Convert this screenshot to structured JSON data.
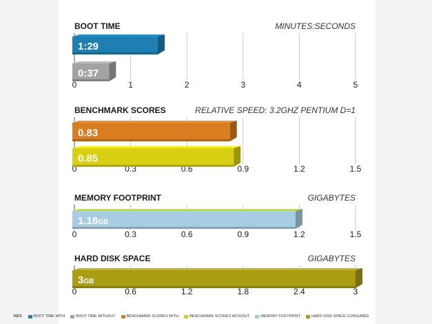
{
  "chart_data": [
    {
      "type": "bar",
      "orientation": "horizontal",
      "title": "BOOT TIME",
      "unit_label": "MINUTES:SECONDS",
      "xlim": [
        0,
        5
      ],
      "ticks": [
        "0",
        "1",
        "2",
        "3",
        "4",
        "5"
      ],
      "tick_values": [
        0,
        1,
        2,
        3,
        4,
        5
      ],
      "grid": true,
      "bars": [
        {
          "series": "BOOT TIME WITH",
          "value": 1.483,
          "label": "1:29",
          "suffix": "",
          "color": "#1f7fb0"
        },
        {
          "series": "BOOT TIME WITHOUT",
          "value": 0.617,
          "label": "0:37",
          "suffix": "",
          "color": "#a3a3a3"
        }
      ]
    },
    {
      "type": "bar",
      "orientation": "horizontal",
      "title": "BENCHMARK SCORES",
      "unit_label": "RELATIVE SPEED: 3.2GHZ PENTIUM D=1",
      "xlim": [
        0,
        1.5
      ],
      "ticks": [
        "0",
        "0.3",
        "0.6",
        "0.9",
        "1.2",
        "1.5"
      ],
      "tick_values": [
        0,
        0.3,
        0.6,
        0.9,
        1.2,
        1.5
      ],
      "grid": true,
      "bars": [
        {
          "series": "BENCHMARK SCORES WITH",
          "value": 0.83,
          "label": "0.83",
          "suffix": "",
          "color": "#d97d21"
        },
        {
          "series": "BENCHMARK SCORES WITHOUT",
          "value": 0.85,
          "label": "0.85",
          "suffix": "",
          "color": "#d8cf12"
        }
      ]
    },
    {
      "type": "bar",
      "orientation": "horizontal",
      "title": "MEMORY FOOTPRINT",
      "unit_label": "GIGABYTES",
      "xlim": [
        0,
        1.5
      ],
      "ticks": [
        "0",
        "0.3",
        "0.6",
        "0.9",
        "1.2",
        "1.5"
      ],
      "tick_values": [
        0,
        0.3,
        0.6,
        0.9,
        1.2,
        1.5
      ],
      "grid": true,
      "bars": [
        {
          "series": "MEMORY FOOTPRINT",
          "value": 1.18,
          "label": "1.18",
          "suffix": "GB",
          "color": "#a6cde2"
        }
      ]
    },
    {
      "type": "bar",
      "orientation": "horizontal",
      "title": "HARD DISK SPACE",
      "unit_label": "GIGABYTES",
      "xlim": [
        0,
        3
      ],
      "ticks": [
        "0",
        "0.6",
        "1.2",
        "1.8",
        "2.4",
        "3"
      ],
      "tick_values": [
        0,
        0.6,
        1.2,
        1.8,
        2.4,
        3
      ],
      "grid": true,
      "bars": [
        {
          "series": "HARD DISK SPACE CONSUMED",
          "value": 3,
          "label": "3",
          "suffix": "GB",
          "color": "#aa9d14"
        }
      ]
    }
  ],
  "key": {
    "title": "KEY:",
    "items": [
      {
        "label": "BOOT TIME WITH",
        "color": "#1f7fb0"
      },
      {
        "label": "BOOT TIME WITHOUT",
        "color": "#a3a3a3"
      },
      {
        "label": "BENCHMARK SCORES WITH",
        "color": "#d97d21"
      },
      {
        "label": "BENCHMARK SCORES WITHOUT",
        "color": "#d8cf12"
      },
      {
        "label": "MEMORY FOOTPRINT",
        "color": "#a6cde2"
      },
      {
        "label": "HARD DISK SPACE CONSUMED",
        "color": "#aa9d14"
      }
    ]
  }
}
